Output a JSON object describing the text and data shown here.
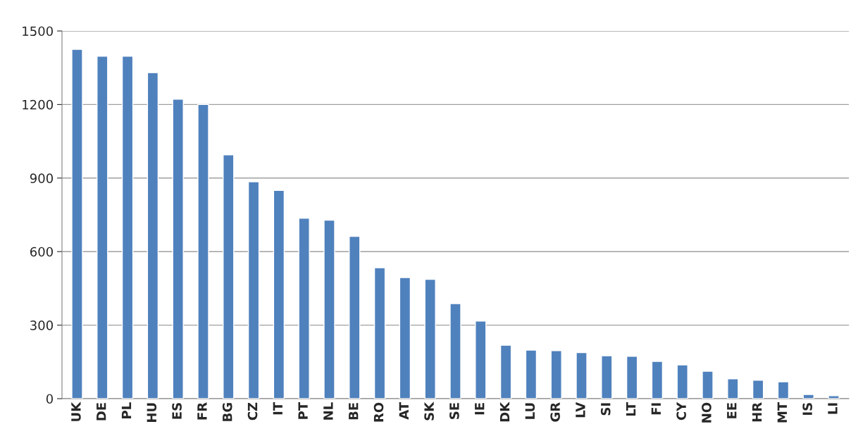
{
  "chart_data": {
    "type": "bar",
    "categories": [
      "UK",
      "DE",
      "PL",
      "HU",
      "ES",
      "FR",
      "BG",
      "CZ",
      "IT",
      "PT",
      "NL",
      "BE",
      "RO",
      "AT",
      "SK",
      "SE",
      "IE",
      "DK",
      "LU",
      "GR",
      "LV",
      "SI",
      "LT",
      "FI",
      "CY",
      "NO",
      "EE",
      "HR",
      "MT",
      "IS",
      "LI"
    ],
    "values": [
      1425,
      1397,
      1397,
      1330,
      1222,
      1200,
      995,
      885,
      850,
      736,
      728,
      662,
      534,
      494,
      487,
      388,
      317,
      218,
      198,
      196,
      188,
      175,
      173,
      152,
      138,
      112,
      81,
      75,
      69,
      17,
      12
    ],
    "color": "#4f81bd",
    "ylim": [
      0,
      1500
    ],
    "yticks": [
      0,
      300,
      600,
      900,
      1200,
      1500
    ],
    "grid": "y",
    "legend": false
  }
}
